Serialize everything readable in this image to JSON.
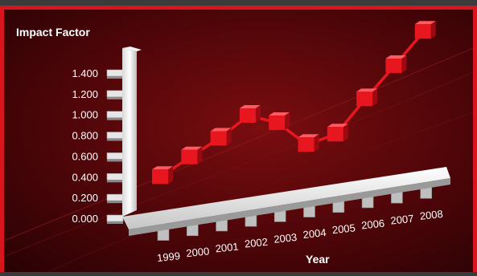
{
  "chart_data": {
    "type": "line",
    "title": "",
    "ylabel": "Impact Factor",
    "xlabel": "Year",
    "ylim": [
      0,
      1.4
    ],
    "yticks": [
      "1.400",
      "1.200",
      "1.000",
      "0.800",
      "0.600",
      "0.400",
      "0.200",
      "0.000"
    ],
    "categories": [
      "1999",
      "2000",
      "2001",
      "2002",
      "2003",
      "2004",
      "2005",
      "2006",
      "2007",
      "2008"
    ],
    "series": [
      {
        "values": [
          0.4,
          0.59,
          0.77,
          0.99,
          0.92,
          0.71,
          0.81,
          1.15,
          1.47,
          1.8
        ]
      }
    ],
    "colors": {
      "background": "#3a0306",
      "accent": "#e8161f",
      "text": "#ffffff"
    }
  }
}
